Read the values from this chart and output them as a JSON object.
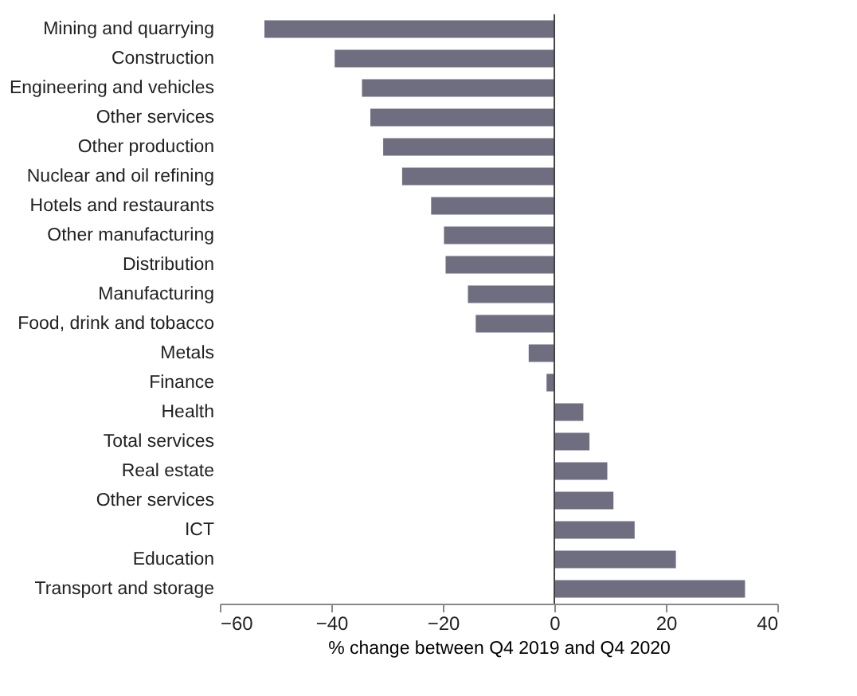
{
  "chart_data": {
    "type": "bar",
    "orientation": "horizontal",
    "xlabel": "% change between Q4 2019 and Q4 2020",
    "categories": [
      "Mining and quarrying",
      "Construction",
      "Engineering and vehicles",
      "Other services",
      "Other production",
      "Nuclear and oil refining",
      "Hotels and restaurants",
      "Other manufacturing",
      "Distribution",
      "Manufacturing",
      "Food, drink and tobacco",
      "Metals",
      "Finance",
      "Health",
      "Total services",
      "Real estate",
      "Other services",
      "ICT",
      "Education",
      "Transport and storage"
    ],
    "values": [
      -52,
      -39.4,
      -34.5,
      -33,
      -30.7,
      -27.3,
      -22.1,
      -19.8,
      -19.5,
      -15.5,
      -14.1,
      -4.6,
      -1.4,
      5.2,
      6.3,
      9.5,
      10.6,
      14.4,
      21.8,
      34.2
    ],
    "color": "#6e6e80",
    "xlim": [
      -60,
      40
    ],
    "xticks": [
      -60,
      -40,
      -20,
      0,
      20,
      40
    ],
    "grid": false,
    "ref_lines": [
      {
        "axis": "x",
        "value": 0,
        "color": "#444444"
      }
    ]
  }
}
